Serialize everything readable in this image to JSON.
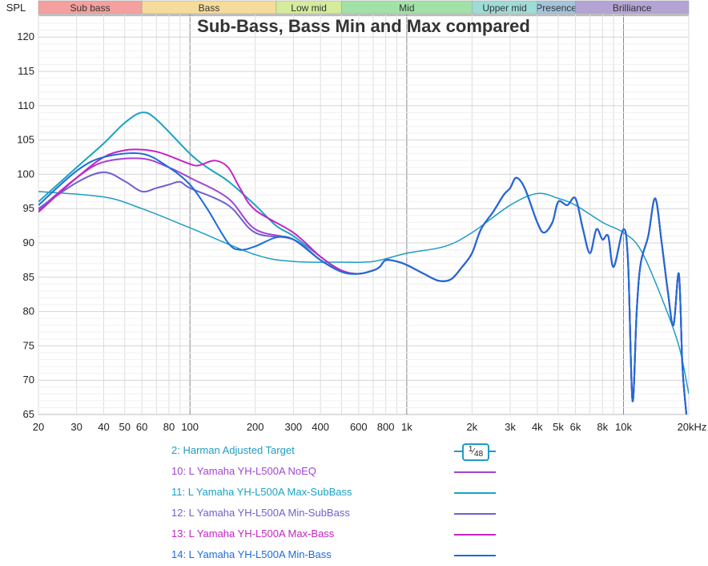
{
  "chart_data": {
    "type": "line",
    "title": "Sub-Bass, Bass Min and Max compared",
    "ylabel": "SPL",
    "xlabel": "",
    "x_scale": "log",
    "xlim": [
      20,
      20000
    ],
    "ylim": [
      65,
      123.3
    ],
    "grid": true,
    "legend_placement": "bottom",
    "x_ticks": [
      {
        "v": 20,
        "label": "20"
      },
      {
        "v": 30,
        "label": "30"
      },
      {
        "v": 40,
        "label": "40"
      },
      {
        "v": 50,
        "label": "50"
      },
      {
        "v": 60,
        "label": "60"
      },
      {
        "v": 80,
        "label": "80"
      },
      {
        "v": 100,
        "label": "100"
      },
      {
        "v": 200,
        "label": "200"
      },
      {
        "v": 300,
        "label": "300"
      },
      {
        "v": 400,
        "label": "400"
      },
      {
        "v": 600,
        "label": "600"
      },
      {
        "v": 800,
        "label": "800"
      },
      {
        "v": 1000,
        "label": "1k"
      },
      {
        "v": 2000,
        "label": "2k"
      },
      {
        "v": 3000,
        "label": "3k"
      },
      {
        "v": 4000,
        "label": "4k"
      },
      {
        "v": 5000,
        "label": "5k"
      },
      {
        "v": 6000,
        "label": "6k"
      },
      {
        "v": 8000,
        "label": "8k"
      },
      {
        "v": 10000,
        "label": "10k"
      },
      {
        "v": 20000,
        "label": "20kHz"
      }
    ],
    "y_ticks": [
      65,
      70,
      75,
      80,
      85,
      90,
      95,
      100,
      105,
      110,
      115,
      120
    ],
    "bands": [
      {
        "label": "Sub bass",
        "from": 20,
        "to": 60,
        "color": "#f4a0a0"
      },
      {
        "label": "Bass",
        "from": 60,
        "to": 250,
        "color": "#f6dc9a"
      },
      {
        "label": "Low mid",
        "from": 250,
        "to": 500,
        "color": "#d4ec9c"
      },
      {
        "label": "Mid",
        "from": 500,
        "to": 2000,
        "color": "#a2e2a8"
      },
      {
        "label": "Upper mid",
        "from": 2000,
        "to": 4000,
        "color": "#9edcd6"
      },
      {
        "label": "Presence",
        "from": 4000,
        "to": 6000,
        "color": "#a4c4dc"
      },
      {
        "label": "Brilliance",
        "from": 6000,
        "to": 20000,
        "color": "#b4a4d4"
      }
    ],
    "smoothing_badge": {
      "num": "1",
      "den": "48"
    },
    "series": [
      {
        "name": "2: Harman Adjusted Target",
        "color": "#1e9cc4",
        "x": [
          20,
          40,
          60,
          100,
          200,
          300,
          500,
          700,
          1000,
          1500,
          2000,
          3000,
          4000,
          5000,
          6000,
          8000,
          10000,
          12000,
          15000,
          18000,
          20000
        ],
        "y": [
          97.5,
          96.7,
          95,
          92.2,
          88.3,
          87.3,
          87.2,
          87.3,
          88.5,
          89.5,
          91.5,
          95.5,
          97.2,
          96.5,
          95.5,
          93,
          91.5,
          89,
          82,
          75,
          68
        ]
      },
      {
        "name": "10: L Yamaha YH-L500A NoEQ",
        "color": "#a444d4",
        "x": [
          20,
          30,
          40,
          60,
          80,
          100,
          150,
          200,
          300,
          400,
          500,
          600,
          700,
          750,
          800,
          900,
          1000,
          1200,
          1400,
          1600,
          1800,
          2000,
          2200,
          2500,
          2800,
          3000,
          3200,
          3500,
          4000,
          4300,
          4700,
          5000,
          5500,
          6000,
          6500,
          7000,
          7500,
          8000,
          8500,
          9000,
          10000,
          10500,
          11000,
          11500,
          12000,
          13000,
          14000,
          15000,
          16000,
          17000,
          18000,
          18700,
          19500
        ],
        "y": [
          94.8,
          99.5,
          101.8,
          102.3,
          101,
          99.5,
          96.5,
          92,
          90.5,
          87.5,
          85.8,
          85.5,
          86,
          86.5,
          87.5,
          87.3,
          86.8,
          85.5,
          84.5,
          84.7,
          86.5,
          88.5,
          92,
          94.5,
          97,
          98,
          99.5,
          98,
          93,
          91.5,
          93,
          96,
          95.5,
          96.5,
          92,
          88.5,
          92,
          90.5,
          91,
          86.5,
          92,
          87,
          67,
          80,
          87,
          91,
          96.5,
          90,
          83,
          78,
          85.5,
          72,
          65
        ]
      },
      {
        "name": "11: L Yamaha YH-L500A Max-SubBass",
        "color": "#1aa2c4",
        "x": [
          20,
          30,
          40,
          50,
          60,
          70,
          100,
          120,
          150,
          200,
          250,
          300,
          400,
          500,
          600,
          700,
          750,
          800,
          900,
          1000,
          1200,
          1400,
          1600,
          1800,
          2000,
          2200,
          2500,
          2800,
          3000,
          3200,
          3500,
          4000,
          4300,
          4700,
          5000,
          5500,
          6000,
          6500,
          7000,
          7500,
          8000,
          8500,
          9000,
          10000,
          10500,
          11000,
          11500,
          12000,
          13000,
          14000,
          15000,
          16000,
          17000,
          18000,
          18700,
          19500
        ],
        "y": [
          96,
          101,
          104.5,
          107.5,
          109,
          108,
          103,
          101,
          99,
          95.5,
          92.5,
          91,
          88,
          85.8,
          85.5,
          86,
          86.5,
          87.5,
          87.3,
          86.8,
          85.5,
          84.5,
          84.7,
          86.5,
          88.5,
          92,
          94.5,
          97,
          98,
          99.5,
          98,
          93,
          91.5,
          93,
          96,
          95.5,
          96.5,
          92,
          88.5,
          92,
          90.5,
          91,
          86.5,
          92,
          87,
          67,
          80,
          87,
          91,
          96.5,
          90,
          83,
          78,
          85.5,
          72,
          65
        ]
      },
      {
        "name": "12: L Yamaha YH-L500A Min-SubBass",
        "color": "#7060d0",
        "x": [
          20,
          30,
          40,
          50,
          60,
          70,
          80,
          90,
          100,
          150,
          200,
          300,
          400,
          500,
          600,
          700,
          750,
          800,
          900,
          1000,
          1200,
          1400,
          1600,
          1800,
          2000,
          2200,
          2500,
          2800,
          3000,
          3200,
          3500,
          4000,
          4300,
          4700,
          5000,
          5500,
          6000,
          6500,
          7000,
          7500,
          8000,
          8500,
          9000,
          10000,
          10500,
          11000,
          11500,
          12000,
          13000,
          14000,
          15000,
          16000,
          17000,
          18000,
          18700,
          19500
        ],
        "y": [
          95,
          98.8,
          100.3,
          99,
          97.5,
          98,
          98.5,
          98.9,
          98,
          95.5,
          91.5,
          90.5,
          87.5,
          85.8,
          85.5,
          86,
          86.5,
          87.5,
          87.3,
          86.8,
          85.5,
          84.5,
          84.7,
          86.5,
          88.5,
          92,
          94.5,
          97,
          98,
          99.5,
          98,
          93,
          91.5,
          93,
          96,
          95.5,
          96.5,
          92,
          88.5,
          92,
          90.5,
          91,
          86.5,
          92,
          87,
          67,
          80,
          87,
          91,
          96.5,
          90,
          83,
          78,
          85.5,
          72,
          65
        ]
      },
      {
        "name": "13: L Yamaha YH-L500A Max-Bass",
        "color": "#c424c4",
        "x": [
          20,
          30,
          40,
          50,
          60,
          70,
          80,
          100,
          110,
          130,
          150,
          170,
          200,
          300,
          400,
          500,
          600,
          700,
          750,
          800,
          900,
          1000,
          1200,
          1400,
          1600,
          1800,
          2000,
          2200,
          2500,
          2800,
          3000,
          3200,
          3500,
          4000,
          4300,
          4700,
          5000,
          5500,
          6000,
          6500,
          7000,
          7500,
          8000,
          8500,
          9000,
          10000,
          10500,
          11000,
          11500,
          12000,
          13000,
          14000,
          15000,
          16000,
          17000,
          18000,
          18700,
          19500
        ],
        "y": [
          94.5,
          99.5,
          102.5,
          103.5,
          103.6,
          103.3,
          102.7,
          101.5,
          101.3,
          102,
          101,
          98,
          94.8,
          91.5,
          88,
          86,
          85.5,
          86,
          86.5,
          87.5,
          87.3,
          86.8,
          85.5,
          84.5,
          84.7,
          86.5,
          88.5,
          92,
          94.5,
          97,
          98,
          99.5,
          98,
          93,
          91.5,
          93,
          96,
          95.5,
          96.5,
          92,
          88.5,
          92,
          90.5,
          91,
          86.5,
          92,
          87,
          67,
          80,
          87,
          91,
          96.5,
          90,
          83,
          78,
          85.5,
          72,
          65
        ]
      },
      {
        "name": "14: L Yamaha YH-L500A Min-Bass",
        "color": "#1c6cd8",
        "x": [
          20,
          30,
          40,
          60,
          80,
          100,
          120,
          150,
          170,
          200,
          250,
          300,
          400,
          500,
          600,
          700,
          750,
          800,
          900,
          1000,
          1200,
          1400,
          1600,
          1800,
          2000,
          2200,
          2500,
          2800,
          3000,
          3200,
          3500,
          4000,
          4300,
          4700,
          5000,
          5500,
          6000,
          6500,
          7000,
          7500,
          8000,
          8500,
          9000,
          10000,
          10500,
          11000,
          11500,
          12000,
          13000,
          14000,
          15000,
          16000,
          17000,
          18000,
          18700,
          19500
        ],
        "y": [
          95.5,
          100.5,
          102.5,
          103,
          101,
          98.5,
          95,
          90,
          89,
          89.5,
          90.8,
          90.5,
          87.5,
          85.8,
          85.5,
          86,
          86.5,
          87.5,
          87.3,
          86.8,
          85.5,
          84.5,
          84.7,
          86.5,
          88.5,
          92,
          94.5,
          97,
          98,
          99.5,
          98,
          93,
          91.5,
          93,
          96,
          95.5,
          96.5,
          92,
          88.5,
          92,
          90.5,
          91,
          86.5,
          92,
          87,
          67,
          80,
          87,
          91,
          96.5,
          90,
          83,
          78,
          85.5,
          72,
          65
        ]
      }
    ]
  }
}
